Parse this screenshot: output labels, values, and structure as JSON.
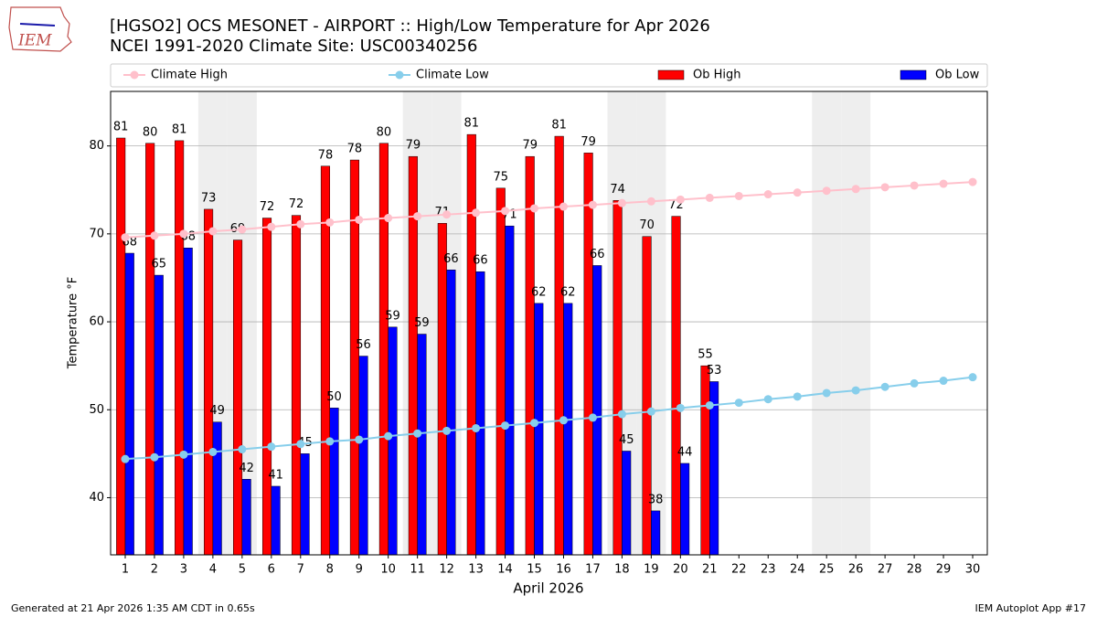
{
  "chart_data": {
    "type": "bar",
    "title": "[HGSO2] OCS MESONET - AIRPORT :: High/Low Temperature for Apr 2026",
    "subtitle": "NCEI 1991-2020 Climate Site: USC00340256",
    "logo": "IEM",
    "x_label": "April 2026",
    "y_label": "Temperature °F",
    "footer_left": "Generated at 21 Apr 2026 1:35 AM CDT in 0.65s",
    "footer_right": "IEM Autoplot App #17",
    "x": [
      1,
      2,
      3,
      4,
      5,
      6,
      7,
      8,
      9,
      10,
      11,
      12,
      13,
      14,
      15,
      16,
      17,
      18,
      19,
      20,
      21,
      22,
      23,
      24,
      25,
      26,
      27,
      28,
      29,
      30
    ],
    "xticks": [
      1,
      2,
      3,
      4,
      5,
      6,
      7,
      8,
      9,
      10,
      11,
      12,
      13,
      14,
      15,
      16,
      17,
      18,
      19,
      20,
      21,
      22,
      23,
      24,
      25,
      26,
      27,
      28,
      29,
      30
    ],
    "xlim": [
      0.5,
      30.5
    ],
    "ylim": [
      33.5,
      86.2
    ],
    "yticks": [
      40,
      50,
      60,
      70,
      80
    ],
    "grid": true,
    "legend": "top",
    "shaded_days": [
      4,
      5,
      11,
      12,
      18,
      19,
      25,
      26
    ],
    "series": [
      {
        "name": "Climate High",
        "kind": "line",
        "color": "#ffc0cb",
        "values": [
          69.6,
          69.8,
          70.0,
          70.3,
          70.5,
          70.8,
          71.1,
          71.3,
          71.6,
          71.8,
          72.0,
          72.2,
          72.4,
          72.6,
          72.9,
          73.1,
          73.3,
          73.5,
          73.7,
          73.9,
          74.1,
          74.3,
          74.5,
          74.7,
          74.9,
          75.1,
          75.3,
          75.5,
          75.7,
          75.9
        ]
      },
      {
        "name": "Climate Low",
        "kind": "line",
        "color": "#87ceeb",
        "values": [
          44.4,
          44.6,
          44.9,
          45.2,
          45.5,
          45.8,
          46.1,
          46.4,
          46.6,
          47.0,
          47.3,
          47.6,
          47.9,
          48.2,
          48.5,
          48.8,
          49.1,
          49.5,
          49.8,
          50.2,
          50.5,
          50.8,
          51.2,
          51.5,
          51.9,
          52.2,
          52.6,
          53.0,
          53.3,
          53.7
        ]
      },
      {
        "name": "Ob High",
        "kind": "bar",
        "color": "#ff0000",
        "values": [
          80.9,
          80.3,
          80.6,
          72.8,
          69.3,
          71.8,
          72.1,
          77.7,
          78.4,
          80.3,
          78.8,
          71.2,
          81.3,
          75.2,
          78.8,
          81.1,
          79.2,
          73.8,
          69.7,
          72.0,
          55,
          null,
          null,
          null,
          null,
          null,
          null,
          null,
          null,
          null
        ],
        "value_labels": [
          "81",
          "80",
          "81",
          "73",
          "69",
          "72",
          "72",
          "78",
          "78",
          "80",
          "79",
          "71",
          "81",
          "75",
          "79",
          "81",
          "79",
          "74",
          "70",
          "72",
          "55",
          null,
          null,
          null,
          null,
          null,
          null,
          null,
          null,
          null
        ]
      },
      {
        "name": "Ob Low",
        "kind": "bar",
        "color": "#0000ff",
        "values": [
          67.8,
          65.3,
          68.4,
          48.6,
          42.1,
          41.3,
          45.0,
          50.2,
          56.1,
          59.4,
          58.6,
          65.9,
          65.7,
          70.9,
          62.1,
          62.1,
          66.4,
          45.3,
          38.5,
          43.9,
          53.2,
          null,
          null,
          null,
          null,
          null,
          null,
          null,
          null,
          null
        ],
        "value_labels": [
          "68",
          "65",
          "68",
          "49",
          "42",
          "41",
          "45",
          "50",
          "56",
          "59",
          "59",
          "66",
          "66",
          "71",
          "62",
          "62",
          "66",
          "45",
          "38",
          "44",
          "53",
          null,
          null,
          null,
          null,
          null,
          null,
          null,
          null,
          null
        ]
      }
    ]
  }
}
